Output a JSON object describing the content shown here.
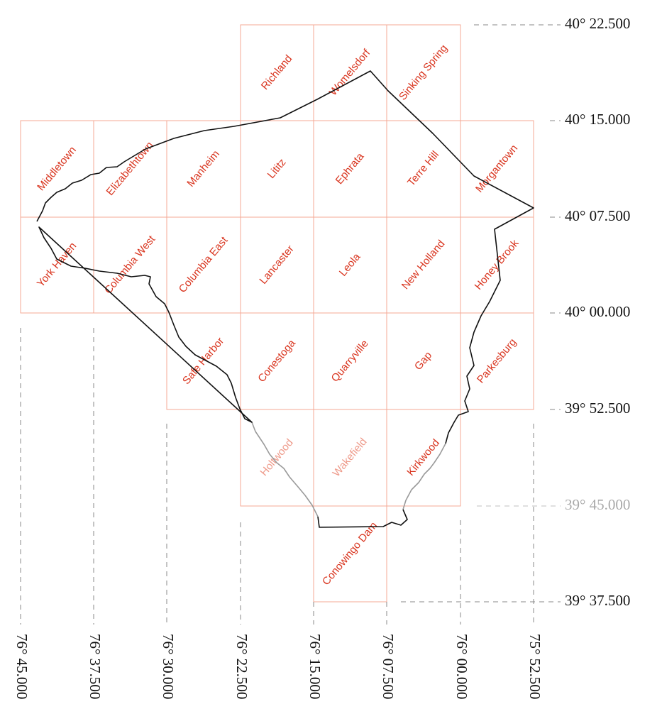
{
  "map": {
    "longitude_degrees": [
      -76.75,
      -76.625,
      -76.5,
      -76.375,
      -76.25,
      -76.125,
      -76.0,
      -75.875
    ],
    "latitude_degrees": [
      40.375,
      40.25,
      40.125,
      40.0,
      39.875,
      39.75,
      39.625
    ],
    "longitude_labels": [
      "76° 45.000",
      "76° 37.500",
      "76° 30.000",
      "76° 22.500",
      "76° 15.000",
      "76° 07.500",
      "76° 00.000",
      "75° 52.500"
    ],
    "latitude_labels": [
      "40° 22.500",
      "40° 15.000",
      "40° 07.500",
      "40° 00.000",
      "39° 52.500",
      "39° 45.000",
      "39° 37.500"
    ],
    "faded_latitude_label": "39° 45.000",
    "quadrangles": [
      {
        "name": "Richland",
        "col": 3,
        "row": 0
      },
      {
        "name": "Womelsdorf",
        "col": 4,
        "row": 0
      },
      {
        "name": "Sinking Spring",
        "col": 5,
        "row": 0
      },
      {
        "name": "Middletown",
        "col": 0,
        "row": 1
      },
      {
        "name": "Elizabethtown",
        "col": 1,
        "row": 1
      },
      {
        "name": "Manheim",
        "col": 2,
        "row": 1
      },
      {
        "name": "Lititz",
        "col": 3,
        "row": 1
      },
      {
        "name": "Ephrata",
        "col": 4,
        "row": 1
      },
      {
        "name": "Terre Hill",
        "col": 5,
        "row": 1
      },
      {
        "name": "Morgantown",
        "col": 6,
        "row": 1
      },
      {
        "name": "York Haven",
        "col": 0,
        "row": 2
      },
      {
        "name": "Columbia West",
        "col": 1,
        "row": 2
      },
      {
        "name": "Columbia East",
        "col": 2,
        "row": 2
      },
      {
        "name": "Lancaster",
        "col": 3,
        "row": 2
      },
      {
        "name": "Leola",
        "col": 4,
        "row": 2
      },
      {
        "name": "New Holland",
        "col": 5,
        "row": 2
      },
      {
        "name": "Honey Brook",
        "col": 6,
        "row": 2
      },
      {
        "name": "Safe Harbor",
        "col": 2,
        "row": 3
      },
      {
        "name": "Conestoga",
        "col": 3,
        "row": 3
      },
      {
        "name": "Quarryville",
        "col": 4,
        "row": 3
      },
      {
        "name": "Gap",
        "col": 5,
        "row": 3
      },
      {
        "name": "Parkesburg",
        "col": 6,
        "row": 3
      },
      {
        "name": "Holtwood",
        "col": 3,
        "row": 4,
        "faded": true
      },
      {
        "name": "Wakefield",
        "col": 4,
        "row": 4,
        "faded": true
      },
      {
        "name": "Kirkwood",
        "col": 5,
        "row": 4
      },
      {
        "name": "Conowingo Dam",
        "col": 4,
        "row": 5
      }
    ]
  }
}
